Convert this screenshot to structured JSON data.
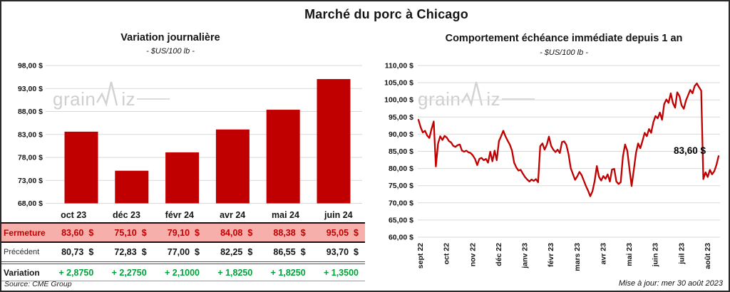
{
  "header": {
    "title": "Marché du porc à Chicago"
  },
  "watermark": {
    "part1": "grain",
    "part2": "iz"
  },
  "footer": {
    "source": "Source: CME Group",
    "updated": "Mise à jour: mer 30 août 2023"
  },
  "colors": {
    "series_red": "#C00000",
    "fermeture_row_bg": "#F7AFAB",
    "variation_green": "#00A33A",
    "gridline": "#D9D9D9",
    "watermark_gray": "#D2D2D2"
  },
  "table": {
    "months": [
      "oct 23",
      "déc 23",
      "févr 24",
      "avr 24",
      "mai 24",
      "juin 24"
    ],
    "rows": [
      {
        "label": "Fermeture",
        "style": "ferm",
        "unit": "$",
        "values": [
          "83,60",
          "75,10",
          "79,10",
          "84,08",
          "88,38",
          "95,05"
        ]
      },
      {
        "label": "Précédent",
        "style": "prec",
        "unit": "$",
        "values": [
          "80,73",
          "72,83",
          "77,00",
          "82,25",
          "86,55",
          "93,70"
        ]
      },
      {
        "label": "Variation",
        "style": "var",
        "unit": "",
        "values": [
          "+ 2,8750",
          "+ 2,2750",
          "+ 2,1000",
          "+ 1,8250",
          "+ 1,8250",
          "+ 1,3500"
        ]
      }
    ]
  },
  "chart_data": [
    {
      "type": "bar",
      "title": "Variation journalière",
      "subtitle": "- $US/100 lb -",
      "categories": [
        "oct 23",
        "déc 23",
        "févr 24",
        "avr 24",
        "mai 24",
        "juin 24"
      ],
      "values": [
        83.6,
        75.1,
        79.1,
        84.08,
        88.38,
        95.05
      ],
      "ylim": [
        68,
        98
      ],
      "ytick_step": 5,
      "ytick_labels": [
        "98,00 $",
        "93,00 $",
        "88,00 $",
        "83,00 $",
        "78,00 $",
        "73,00 $",
        "68,00 $"
      ],
      "bar_color": "#C00000",
      "grid": true,
      "legend": "none"
    },
    {
      "type": "line",
      "title": "Comportement échéance immédiate depuis 1 an",
      "subtitle": "- $US/100 lb -",
      "x_labels": [
        "sept 22",
        "oct 22",
        "nov 22",
        "déc 22",
        "janv 23",
        "févr 23",
        "mars 23",
        "avr 23",
        "mai 23",
        "juin 23",
        "juil 23",
        "août 23"
      ],
      "ylim": [
        60,
        110
      ],
      "ytick_step": 5,
      "ytick_labels": [
        "110,00 $",
        "105,00 $",
        "100,00 $",
        "95,00 $",
        "90,00 $",
        "85,00 $",
        "80,00 $",
        "75,00 $",
        "70,00 $",
        "65,00 $",
        "60,00 $"
      ],
      "line_color": "#C00000",
      "grid": true,
      "legend": "none",
      "annotation": {
        "text": "83,60 $",
        "value": 83.6
      },
      "values": [
        94.2,
        92.0,
        90.5,
        91.0,
        89.6,
        88.9,
        91.5,
        93.7,
        80.6,
        87.3,
        89.4,
        88.3,
        89.5,
        89.0,
        88.0,
        87.6,
        86.6,
        86.3,
        86.8,
        87.0,
        85.2,
        84.9,
        85.2,
        84.7,
        84.5,
        83.8,
        82.8,
        81.0,
        82.8,
        83.1,
        82.4,
        82.8,
        81.7,
        84.9,
        82.1,
        85.2,
        82.4,
        88.0,
        89.4,
        91.0,
        89.4,
        88.1,
        87.0,
        85.2,
        81.7,
        80.3,
        79.4,
        79.6,
        78.5,
        77.5,
        76.8,
        76.2,
        76.8,
        76.4,
        76.9,
        76.0,
        86.5,
        87.3,
        85.5,
        86.9,
        89.3,
        86.6,
        85.5,
        84.8,
        85.5,
        84.5,
        87.7,
        87.9,
        86.9,
        84.2,
        80.1,
        78.4,
        76.7,
        77.7,
        79.0,
        78.1,
        76.5,
        74.9,
        73.5,
        71.9,
        73.4,
        76.3,
        80.7,
        77.6,
        76.5,
        77.8,
        77.0,
        78.3,
        76.2,
        79.7,
        79.9,
        76.2,
        75.5,
        76.0,
        83.5,
        87.0,
        85.2,
        80.0,
        74.9,
        79.5,
        84.5,
        87.3,
        85.9,
        88.0,
        90.4,
        89.4,
        91.5,
        90.4,
        93.5,
        95.3,
        94.6,
        96.3,
        94.2,
        98.8,
        100.1,
        99.1,
        101.9,
        99.1,
        97.7,
        102.2,
        101.1,
        98.4,
        97.4,
        99.8,
        101.4,
        102.9,
        101.9,
        104.0,
        104.8,
        103.7,
        102.7,
        76.9,
        78.9,
        77.5,
        79.6,
        78.3,
        79.2,
        81.0,
        83.6
      ]
    }
  ]
}
